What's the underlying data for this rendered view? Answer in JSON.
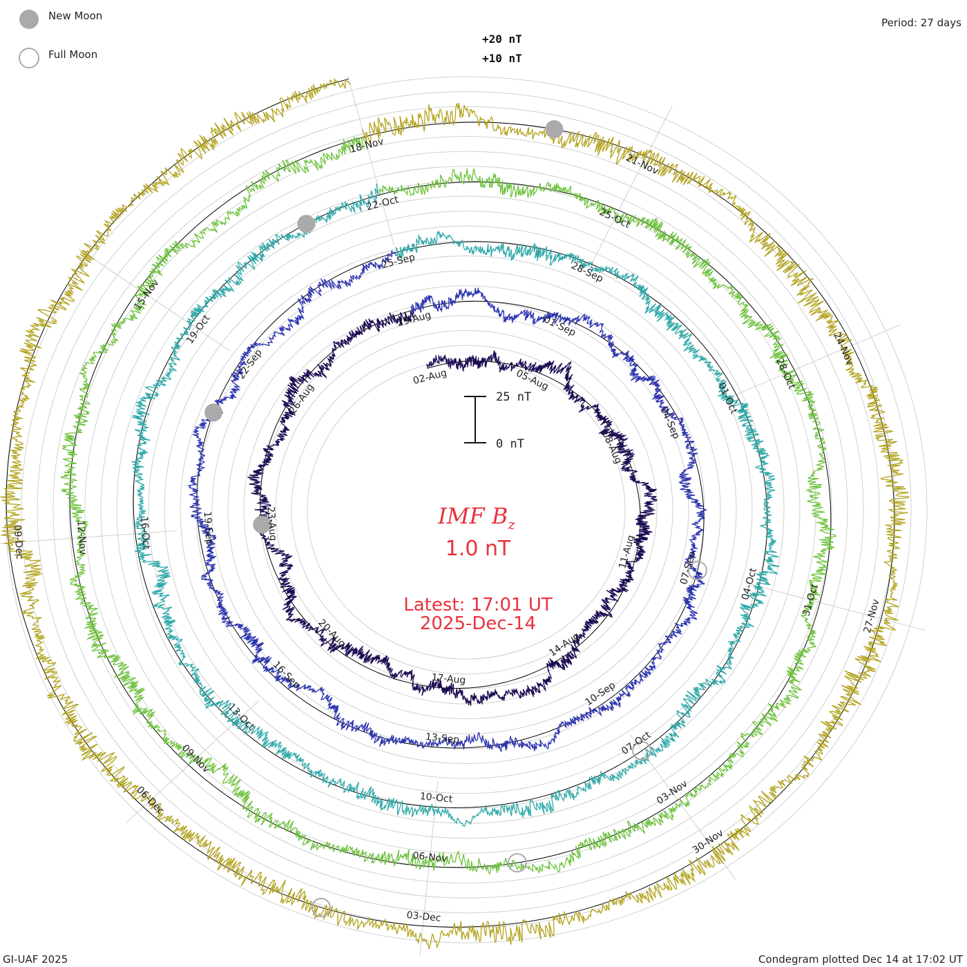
{
  "header": {
    "legend": [
      {
        "label": "New Moon",
        "style": "filled",
        "color": "#aaaaaa"
      },
      {
        "label": "Full Moon",
        "style": "open",
        "color": "#aaaaaa"
      }
    ],
    "period": "Period: 27 days"
  },
  "scale_labels": {
    "upper": "+20 nT",
    "lower": "+10 nT"
  },
  "scale_bar": {
    "top_label": "25 nT",
    "bottom_label": "0 nT"
  },
  "center": {
    "title": "IMF B",
    "subscript": "z",
    "value": "1.0 nT",
    "latest": "Latest: 17:01 UT",
    "date": "2025-Dec-14"
  },
  "footer": {
    "left": "GI-UAF 2025",
    "right": "Condegram plotted Dec 14 at 17:02 UT"
  },
  "chart_data": {
    "type": "line",
    "subtype": "condegram spiral (polar)",
    "quantity": "IMF Bz",
    "units": "nT",
    "period_days": 27,
    "start": "2025-Aug-02",
    "end": "2025-Dec-14 17:01 UT",
    "latest_value_nT": 1.0,
    "reference_radius_nT": 0,
    "grid": true,
    "series": [
      {
        "turn": 1,
        "from": "2025-Aug-02",
        "to": "2025-Aug-29",
        "color": "#1c0a52",
        "activity_nT": 7
      },
      {
        "turn": 2,
        "from": "2025-Aug-29",
        "to": "2025-Sep-25",
        "color": "#2c34b0",
        "activity_nT": 6
      },
      {
        "turn": 3,
        "from": "2025-Sep-25",
        "to": "2025-Oct-22",
        "color": "#2fa8a8",
        "activity_nT": 8
      },
      {
        "turn": 4,
        "from": "2025-Oct-22",
        "to": "2025-Nov-18",
        "color": "#6cc23a",
        "activity_nT": 9
      },
      {
        "turn": 5,
        "from": "2025-Nov-18",
        "to": "2025-Dec-14",
        "color": "#b2a21a",
        "activity_nT": 12
      }
    ],
    "date_ticks": [
      {
        "label": "02-Aug",
        "turn": 0,
        "day": 0
      },
      {
        "label": "05-Aug",
        "turn": 0,
        "day": 3
      },
      {
        "label": "08-Aug",
        "turn": 0,
        "day": 6
      },
      {
        "label": "11-Aug",
        "turn": 0,
        "day": 9
      },
      {
        "label": "14-Aug",
        "turn": 0,
        "day": 12
      },
      {
        "label": "17-Aug",
        "turn": 0,
        "day": 15
      },
      {
        "label": "20-Aug",
        "turn": 0,
        "day": 18
      },
      {
        "label": "23-Aug",
        "turn": 0,
        "day": 21
      },
      {
        "label": "26-Aug",
        "turn": 0,
        "day": 24
      },
      {
        "label": "29-Aug",
        "turn": 1,
        "day": 0
      },
      {
        "label": "01-Sep",
        "turn": 1,
        "day": 3
      },
      {
        "label": "04-Sep",
        "turn": 1,
        "day": 6
      },
      {
        "label": "07-Sep",
        "turn": 1,
        "day": 9
      },
      {
        "label": "10-Sep",
        "turn": 1,
        "day": 12
      },
      {
        "label": "13-Sep",
        "turn": 1,
        "day": 15
      },
      {
        "label": "16-Sep",
        "turn": 1,
        "day": 18
      },
      {
        "label": "19-Sep",
        "turn": 1,
        "day": 21
      },
      {
        "label": "22-Sep",
        "turn": 1,
        "day": 24
      },
      {
        "label": "25-Sep",
        "turn": 2,
        "day": 0
      },
      {
        "label": "28-Sep",
        "turn": 2,
        "day": 3
      },
      {
        "label": "01-Oct",
        "turn": 2,
        "day": 6
      },
      {
        "label": "04-Oct",
        "turn": 2,
        "day": 9
      },
      {
        "label": "07-Oct",
        "turn": 2,
        "day": 12
      },
      {
        "label": "10-Oct",
        "turn": 2,
        "day": 15
      },
      {
        "label": "13-Oct",
        "turn": 2,
        "day": 18
      },
      {
        "label": "16-Oct",
        "turn": 2,
        "day": 21
      },
      {
        "label": "19-Oct",
        "turn": 2,
        "day": 24
      },
      {
        "label": "22-Oct",
        "turn": 3,
        "day": 0
      },
      {
        "label": "25-Oct",
        "turn": 3,
        "day": 3
      },
      {
        "label": "28-Oct",
        "turn": 3,
        "day": 6
      },
      {
        "label": "31-Oct",
        "turn": 3,
        "day": 9
      },
      {
        "label": "03-Nov",
        "turn": 3,
        "day": 12
      },
      {
        "label": "06-Nov",
        "turn": 3,
        "day": 15
      },
      {
        "label": "09-Nov",
        "turn": 3,
        "day": 18
      },
      {
        "label": "12-Nov",
        "turn": 3,
        "day": 21
      },
      {
        "label": "15-Nov",
        "turn": 3,
        "day": 24
      },
      {
        "label": "18-Nov",
        "turn": 4,
        "day": 0
      },
      {
        "label": "21-Nov",
        "turn": 4,
        "day": 3
      },
      {
        "label": "24-Nov",
        "turn": 4,
        "day": 6
      },
      {
        "label": "27-Nov",
        "turn": 4,
        "day": 9
      },
      {
        "label": "30-Nov",
        "turn": 4,
        "day": 12
      },
      {
        "label": "03-Dec",
        "turn": 4,
        "day": 15
      },
      {
        "label": "06-Dec",
        "turn": 4,
        "day": 18
      },
      {
        "label": "09-Dec",
        "turn": 4,
        "day": 21
      }
    ],
    "moon_phases": [
      {
        "phase": "new",
        "date": "2025-Aug-23",
        "turn": 0,
        "day": 21
      },
      {
        "phase": "full",
        "date": "2025-Sep-07",
        "turn": 1,
        "day": 9
      },
      {
        "phase": "new",
        "date": "2025-Sep-21",
        "turn": 1,
        "day": 23
      },
      {
        "phase": "full",
        "date": "2025-Oct-07",
        "turn": 2,
        "day": 12
      },
      {
        "phase": "new",
        "date": "2025-Oct-21",
        "turn": 2,
        "day": 26
      },
      {
        "phase": "full",
        "date": "2025-Nov-05",
        "turn": 3,
        "day": 14
      },
      {
        "phase": "new",
        "date": "2025-Nov-20",
        "turn": 4,
        "day": 2
      },
      {
        "phase": "full",
        "date": "2025-Dec-04",
        "turn": 4,
        "day": 16
      }
    ]
  }
}
